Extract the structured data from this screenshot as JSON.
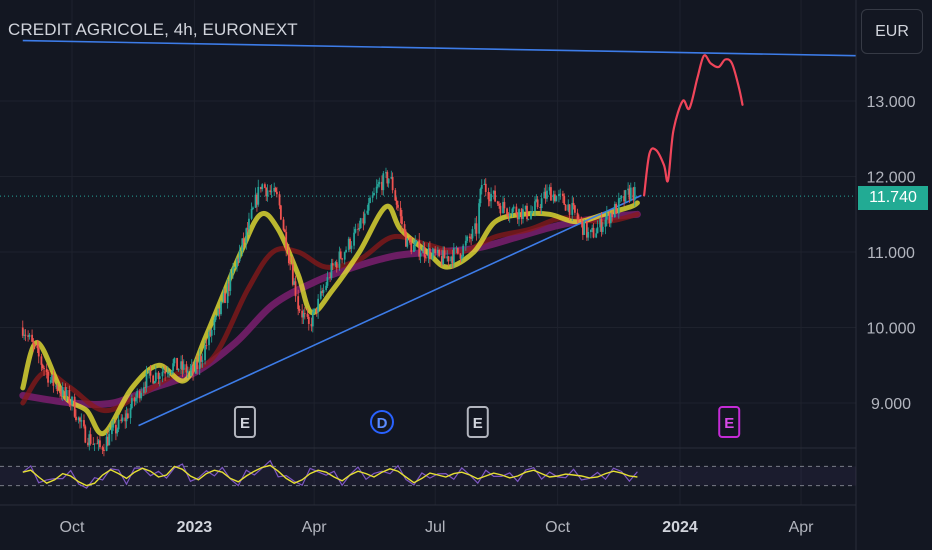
{
  "header": {
    "title": "CREDIT AGRICOLE, 4h, EURONEXT",
    "currency": "EUR"
  },
  "last_price": "11.740",
  "colors": {
    "background": "#131722",
    "up": "#26a69a",
    "down": "#ef5350",
    "ma_fast": "#e6e033",
    "ma_mid": "#8b1a1a",
    "ma_slow": "#7b1e6e",
    "trendline": "#3d7ce8",
    "projection": "#f0455a",
    "rsi": "#e6e033",
    "rsi_signal": "#7e57c2",
    "last_price_badge": "#22ab94"
  },
  "chart_data": {
    "type": "line",
    "title": "CREDIT AGRICOLE, 4h, EURONEXT",
    "currency": "EUR",
    "xlabel": "",
    "ylabel": "",
    "x_ticks": [
      "Oct",
      "2023",
      "Apr",
      "Jul",
      "Oct",
      "2024",
      "Apr"
    ],
    "y_ticks": [
      "9.000",
      "10.000",
      "11.000",
      "12.000",
      "13.000"
    ],
    "ylim": [
      8.7,
      13.8
    ],
    "last_price": 11.74,
    "series": [
      {
        "kind": "price",
        "points": [
          [
            "2022-08-25",
            10.0
          ],
          [
            "2022-09-15",
            9.3
          ],
          [
            "2022-10-01",
            9.0
          ],
          [
            "2022-10-10",
            8.6
          ],
          [
            "2022-10-22",
            8.4
          ],
          [
            "2022-11-10",
            8.8
          ],
          [
            "2022-11-25",
            9.3
          ],
          [
            "2022-12-15",
            9.5
          ],
          [
            "2023-01-01",
            9.4
          ],
          [
            "2023-01-20",
            10.2
          ],
          [
            "2023-02-10",
            11.3
          ],
          [
            "2023-02-20",
            11.9
          ],
          [
            "2023-03-05",
            11.7
          ],
          [
            "2023-03-20",
            10.3
          ],
          [
            "2023-03-28",
            10.0
          ],
          [
            "2023-04-15",
            10.8
          ],
          [
            "2023-05-05",
            11.3
          ],
          [
            "2023-05-20",
            11.9
          ],
          [
            "2023-05-28",
            12.0
          ],
          [
            "2023-06-10",
            11.1
          ],
          [
            "2023-06-25",
            11.0
          ],
          [
            "2023-07-05",
            10.9
          ],
          [
            "2023-07-20",
            11.0
          ],
          [
            "2023-08-01",
            11.3
          ],
          [
            "2023-08-05",
            11.9
          ],
          [
            "2023-08-20",
            11.6
          ],
          [
            "2023-09-10",
            11.5
          ],
          [
            "2023-09-25",
            11.8
          ],
          [
            "2023-10-10",
            11.6
          ],
          [
            "2023-10-25",
            11.2
          ],
          [
            "2023-11-10",
            11.5
          ],
          [
            "2023-11-25",
            11.8
          ],
          [
            "2023-11-30",
            11.74
          ]
        ]
      },
      {
        "kind": "ma_fast",
        "points": [
          [
            "2022-08-25",
            9.2
          ],
          [
            "2022-09-05",
            9.8
          ],
          [
            "2022-09-25",
            9.1
          ],
          [
            "2022-10-12",
            8.9
          ],
          [
            "2022-10-25",
            8.6
          ],
          [
            "2022-11-15",
            9.2
          ],
          [
            "2022-12-05",
            9.5
          ],
          [
            "2022-12-25",
            9.3
          ],
          [
            "2023-01-10",
            9.9
          ],
          [
            "2023-02-05",
            11.0
          ],
          [
            "2023-02-20",
            11.5
          ],
          [
            "2023-03-05",
            11.3
          ],
          [
            "2023-03-20",
            10.7
          ],
          [
            "2023-03-30",
            10.2
          ],
          [
            "2023-04-15",
            10.5
          ],
          [
            "2023-05-05",
            11.0
          ],
          [
            "2023-05-25",
            11.6
          ],
          [
            "2023-06-05",
            11.3
          ],
          [
            "2023-06-25",
            11.0
          ],
          [
            "2023-07-10",
            10.8
          ],
          [
            "2023-07-30",
            11.0
          ],
          [
            "2023-08-15",
            11.4
          ],
          [
            "2023-09-05",
            11.5
          ],
          [
            "2023-09-25",
            11.5
          ],
          [
            "2023-10-15",
            11.4
          ],
          [
            "2023-11-05",
            11.5
          ],
          [
            "2023-11-25",
            11.6
          ],
          [
            "2023-11-30",
            11.65
          ]
        ]
      },
      {
        "kind": "ma_mid",
        "points": [
          [
            "2022-08-25",
            9.0
          ],
          [
            "2022-09-10",
            9.4
          ],
          [
            "2022-09-30",
            9.2
          ],
          [
            "2022-10-25",
            8.9
          ],
          [
            "2022-11-20",
            9.1
          ],
          [
            "2022-12-20",
            9.4
          ],
          [
            "2023-01-15",
            9.6
          ],
          [
            "2023-02-10",
            10.5
          ],
          [
            "2023-03-01",
            11.0
          ],
          [
            "2023-03-20",
            11.0
          ],
          [
            "2023-04-10",
            10.8
          ],
          [
            "2023-05-05",
            10.9
          ],
          [
            "2023-05-30",
            11.2
          ],
          [
            "2023-06-25",
            11.1
          ],
          [
            "2023-07-20",
            11.0
          ],
          [
            "2023-08-15",
            11.2
          ],
          [
            "2023-09-10",
            11.3
          ],
          [
            "2023-10-05",
            11.45
          ],
          [
            "2023-11-05",
            11.4
          ],
          [
            "2023-11-30",
            11.5
          ]
        ]
      },
      {
        "kind": "ma_slow",
        "points": [
          [
            "2022-08-25",
            9.1
          ],
          [
            "2022-10-01",
            9.0
          ],
          [
            "2022-11-01",
            9.0
          ],
          [
            "2022-12-01",
            9.2
          ],
          [
            "2023-01-01",
            9.4
          ],
          [
            "2023-02-01",
            9.8
          ],
          [
            "2023-03-01",
            10.3
          ],
          [
            "2023-04-01",
            10.6
          ],
          [
            "2023-05-01",
            10.8
          ],
          [
            "2023-06-01",
            10.95
          ],
          [
            "2023-07-01",
            11.0
          ],
          [
            "2023-08-01",
            11.05
          ],
          [
            "2023-09-01",
            11.2
          ],
          [
            "2023-10-01",
            11.35
          ],
          [
            "2023-11-01",
            11.45
          ],
          [
            "2023-11-30",
            11.5
          ]
        ]
      },
      {
        "kind": "trendline",
        "points": [
          [
            "2022-11-20",
            8.7
          ],
          [
            "2023-12-03",
            11.75
          ]
        ]
      },
      {
        "kind": "trendline",
        "points": [
          [
            "2022-08-25",
            13.8
          ],
          [
            "2024-05-12",
            13.6
          ]
        ]
      },
      {
        "kind": "projection",
        "points": [
          [
            "2023-12-05",
            11.75
          ],
          [
            "2023-12-09",
            12.3
          ],
          [
            "2023-12-14",
            12.35
          ],
          [
            "2023-12-20",
            12.15
          ],
          [
            "2023-12-23",
            11.95
          ],
          [
            "2023-12-27",
            12.6
          ],
          [
            "2024-01-03",
            13.0
          ],
          [
            "2024-01-08",
            12.9
          ],
          [
            "2024-01-14",
            13.3
          ],
          [
            "2024-01-19",
            13.6
          ],
          [
            "2024-01-24",
            13.5
          ],
          [
            "2024-01-30",
            13.45
          ],
          [
            "2024-02-04",
            13.55
          ],
          [
            "2024-02-09",
            13.5
          ],
          [
            "2024-02-14",
            13.2
          ],
          [
            "2024-02-17",
            12.95
          ]
        ]
      }
    ],
    "events": [
      {
        "label": "E",
        "type": "earnings",
        "date": "2023-02-08"
      },
      {
        "label": "D",
        "type": "dividend",
        "date": "2023-05-22"
      },
      {
        "label": "E",
        "type": "earnings",
        "date": "2023-08-02"
      },
      {
        "label": "E",
        "type": "earnings",
        "date": "2024-02-07"
      }
    ],
    "rsi": {
      "upper": 70,
      "lower": 30,
      "values": [
        58,
        62,
        48,
        35,
        42,
        55,
        50,
        38,
        30,
        35,
        52,
        63,
        55,
        45,
        58,
        66,
        60,
        48,
        52,
        70,
        64,
        50,
        42,
        55,
        62,
        58,
        45,
        38,
        50,
        60,
        68,
        72,
        60,
        45,
        35,
        42,
        55,
        62,
        58,
        48,
        40,
        52,
        60,
        55,
        48,
        58,
        65,
        60,
        48,
        36,
        45,
        56,
        52,
        48,
        55,
        58,
        52,
        44,
        50,
        56,
        52,
        46,
        50,
        58,
        62,
        55,
        48,
        50,
        54,
        52,
        50,
        46,
        48,
        55,
        60,
        56,
        50,
        48
      ]
    }
  }
}
